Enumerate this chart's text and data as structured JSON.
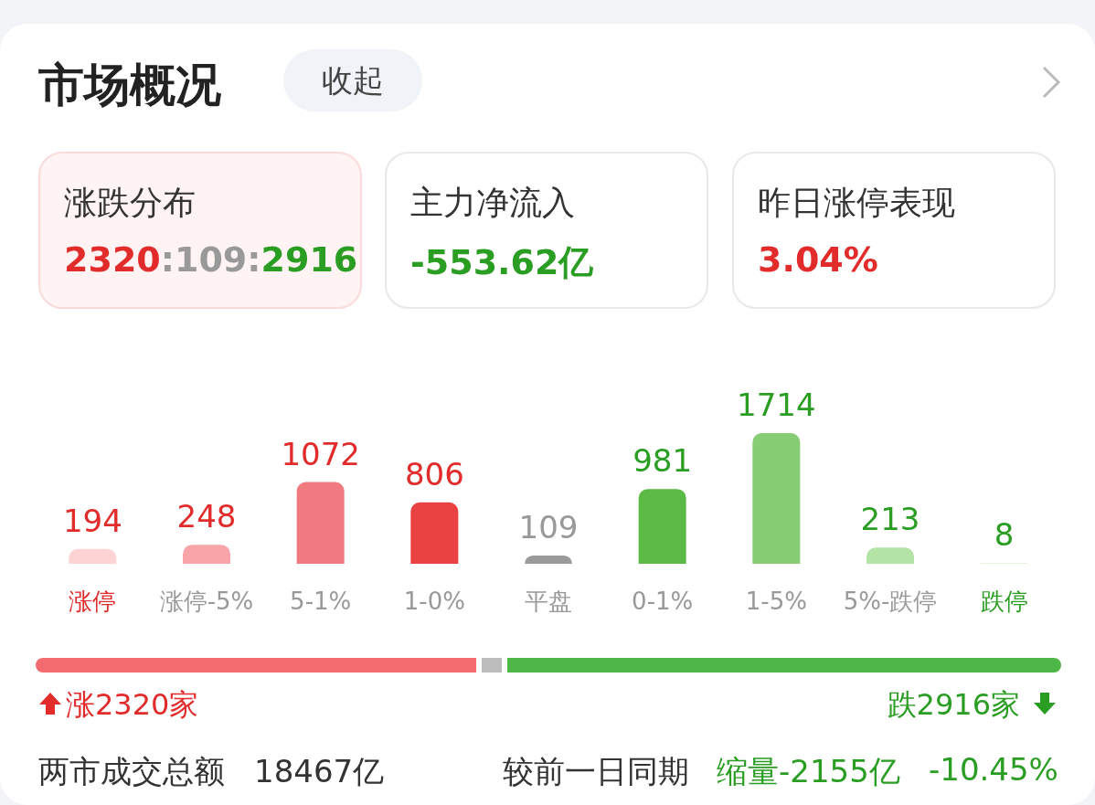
{
  "chart_data": {
    "type": "bar",
    "title": "市场概况",
    "categories": [
      "涨停",
      "涨停-5%",
      "5-1%",
      "1-0%",
      "平盘",
      "0-1%",
      "1-5%",
      "5%-跌停",
      "跌停"
    ],
    "values": [
      194,
      248,
      1072,
      806,
      109,
      981,
      1714,
      213,
      8
    ],
    "colors": [
      "#fdd3d4",
      "#f8a4a8",
      "#f07a80",
      "#ea4242",
      "#9a9a9a",
      "#5bba46",
      "#86cd74",
      "#b3e3a5",
      "#dcf1d5"
    ],
    "data_labels": true,
    "annotations": [
      "收起",
      "涨跌分布",
      "2320:109:2916",
      "主力净流入",
      "-553.62亿",
      "昨日涨停表现",
      "3.04%",
      "涨2320家",
      "跌2916家",
      "两市成交总额",
      "18467亿",
      "较前一日同期",
      "缩量-2155亿",
      "-10.45%"
    ]
  }
}
